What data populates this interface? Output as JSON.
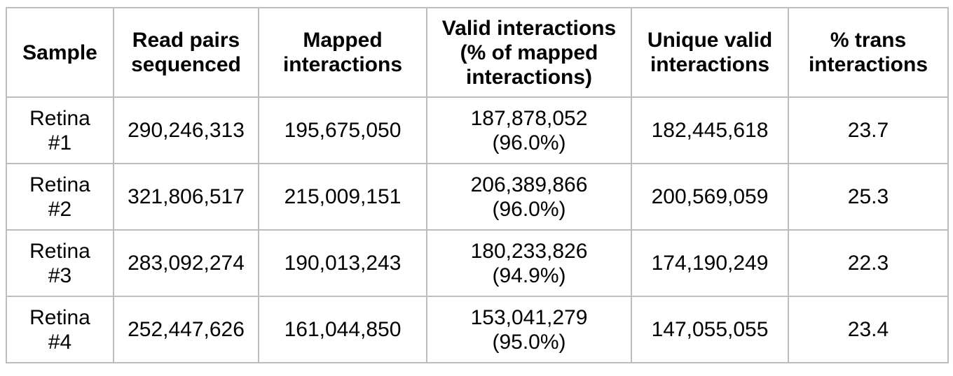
{
  "page": {
    "background_color": "#ffffff",
    "border_color": "#bdbdbd",
    "text_color": "#000000"
  },
  "table": {
    "columns": [
      "Sample",
      "Read pairs\nsequenced",
      "Mapped\ninteractions",
      "Valid interactions\n(% of mapped\ninteractions)",
      "Unique valid\ninteractions",
      "% trans\ninteractions"
    ],
    "rows": [
      {
        "sample": "Retina\n#1",
        "read_pairs_sequenced": "290,246,313",
        "mapped_interactions": "195,675,050",
        "valid_interactions": "187,878,052\n(96.0%)",
        "unique_valid_interactions": "182,445,618",
        "pct_trans_interactions": "23.7"
      },
      {
        "sample": "Retina\n#2",
        "read_pairs_sequenced": "321,806,517",
        "mapped_interactions": "215,009,151",
        "valid_interactions": "206,389,866\n(96.0%)",
        "unique_valid_interactions": "200,569,059",
        "pct_trans_interactions": "25.3"
      },
      {
        "sample": "Retina\n#3",
        "read_pairs_sequenced": "283,092,274",
        "mapped_interactions": "190,013,243",
        "valid_interactions": "180,233,826\n(94.9%)",
        "unique_valid_interactions": "174,190,249",
        "pct_trans_interactions": "22.3"
      },
      {
        "sample": "Retina\n#4",
        "read_pairs_sequenced": "252,447,626",
        "mapped_interactions": "161,044,850",
        "valid_interactions": "153,041,279\n(95.0%)",
        "unique_valid_interactions": "147,055,055",
        "pct_trans_interactions": "23.4"
      }
    ]
  }
}
